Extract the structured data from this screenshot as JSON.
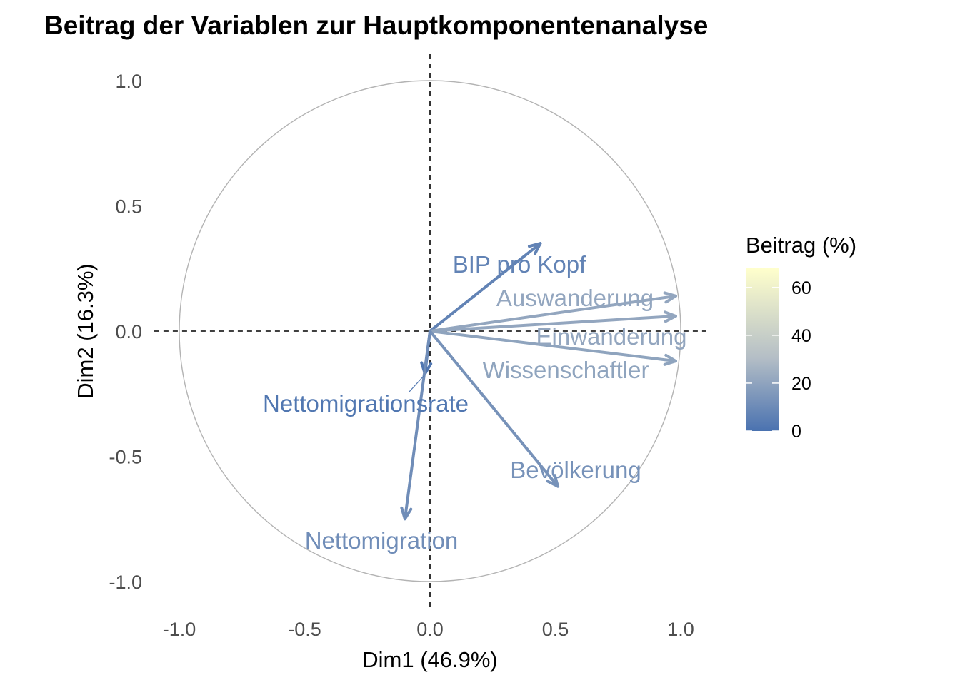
{
  "chart_data": {
    "type": "scatter",
    "subtype": "pca-variable-correlation-circle",
    "title": "Beitrag der Variablen zur Hauptkomponentenanalyse",
    "xlabel": "Dim1 (46.9%)",
    "ylabel": "Dim2 (16.3%)",
    "xlim": [
      -1.1,
      1.1
    ],
    "ylim": [
      -1.1,
      1.1
    ],
    "x_ticks": [
      "-1.0",
      "-0.5",
      "0.0",
      "0.5",
      "1.0"
    ],
    "y_ticks": [
      "-1.0",
      "-0.5",
      "0.0",
      "0.5",
      "1.0"
    ],
    "grid": false,
    "unit_circle": true,
    "legend": {
      "title": "Beitrag (%)",
      "position": "right",
      "ticks": [
        "0",
        "20",
        "40",
        "60"
      ],
      "range": [
        0,
        68
      ],
      "color_low": "#4a72b0",
      "color_mid": "#b4bec6",
      "color_high": "#ffffcc"
    },
    "variables": [
      {
        "name": "BIP pro Kopf",
        "x": 0.44,
        "y": 0.35,
        "contribution": 7
      },
      {
        "name": "Auswanderung",
        "x": 0.98,
        "y": 0.14,
        "contribution": 21
      },
      {
        "name": "Einwanderung",
        "x": 0.98,
        "y": 0.06,
        "contribution": 21
      },
      {
        "name": "Wissenschaftler",
        "x": 0.98,
        "y": -0.12,
        "contribution": 20
      },
      {
        "name": "Bevölkerung",
        "x": 0.51,
        "y": -0.62,
        "contribution": 13
      },
      {
        "name": "Nettomigrationsrate",
        "x": -0.02,
        "y": -0.17,
        "contribution": 2
      },
      {
        "name": "Nettomigration",
        "x": -0.1,
        "y": -0.75,
        "contribution": 11
      }
    ]
  }
}
